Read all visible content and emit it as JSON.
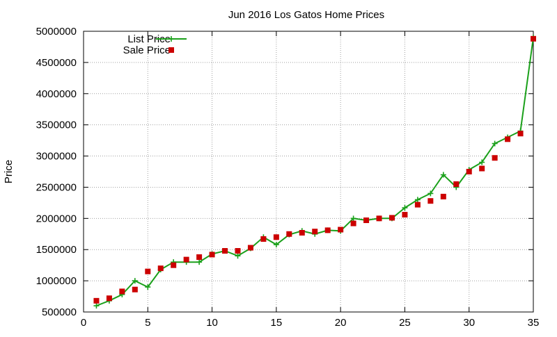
{
  "chart_data": {
    "type": "line",
    "title": "Jun 2016 Los Gatos Home Prices",
    "xlabel": "",
    "ylabel": "Price",
    "xlim": [
      0,
      35
    ],
    "ylim": [
      500000,
      5000000
    ],
    "x_ticks": [
      0,
      5,
      10,
      15,
      20,
      25,
      30,
      35
    ],
    "y_ticks": [
      500000,
      1000000,
      1500000,
      2000000,
      2500000,
      3000000,
      3500000,
      4000000,
      4500000,
      5000000
    ],
    "grid": true,
    "legend_position": "top-left",
    "x": [
      1,
      2,
      3,
      4,
      5,
      6,
      7,
      8,
      9,
      10,
      11,
      12,
      13,
      14,
      15,
      16,
      17,
      18,
      19,
      20,
      21,
      22,
      23,
      24,
      25,
      26,
      27,
      28,
      29,
      30,
      31,
      32,
      33,
      34,
      35
    ],
    "series": [
      {
        "name": "List Price",
        "style": "line-points",
        "marker": "plus",
        "color": "#1aa01a",
        "values": [
          600000,
          680000,
          780000,
          1000000,
          900000,
          1180000,
          1300000,
          1300000,
          1300000,
          1430000,
          1480000,
          1400000,
          1520000,
          1700000,
          1580000,
          1740000,
          1800000,
          1750000,
          1810000,
          1800000,
          2000000,
          1970000,
          2000000,
          2000000,
          2170000,
          2300000,
          2400000,
          2700000,
          2500000,
          2780000,
          2900000,
          3200000,
          3300000,
          3400000,
          4900000
        ]
      },
      {
        "name": "Sale Price",
        "style": "points",
        "marker": "square",
        "color": "#cc0000",
        "values": [
          680000,
          720000,
          830000,
          860000,
          1150000,
          1200000,
          1250000,
          1340000,
          1380000,
          1420000,
          1480000,
          1480000,
          1530000,
          1670000,
          1700000,
          1750000,
          1770000,
          1790000,
          1810000,
          1820000,
          1920000,
          1970000,
          2000000,
          2010000,
          2060000,
          2220000,
          2280000,
          2350000,
          2550000,
          2750000,
          2800000,
          2970000,
          3270000,
          3360000,
          4880000
        ]
      }
    ]
  }
}
